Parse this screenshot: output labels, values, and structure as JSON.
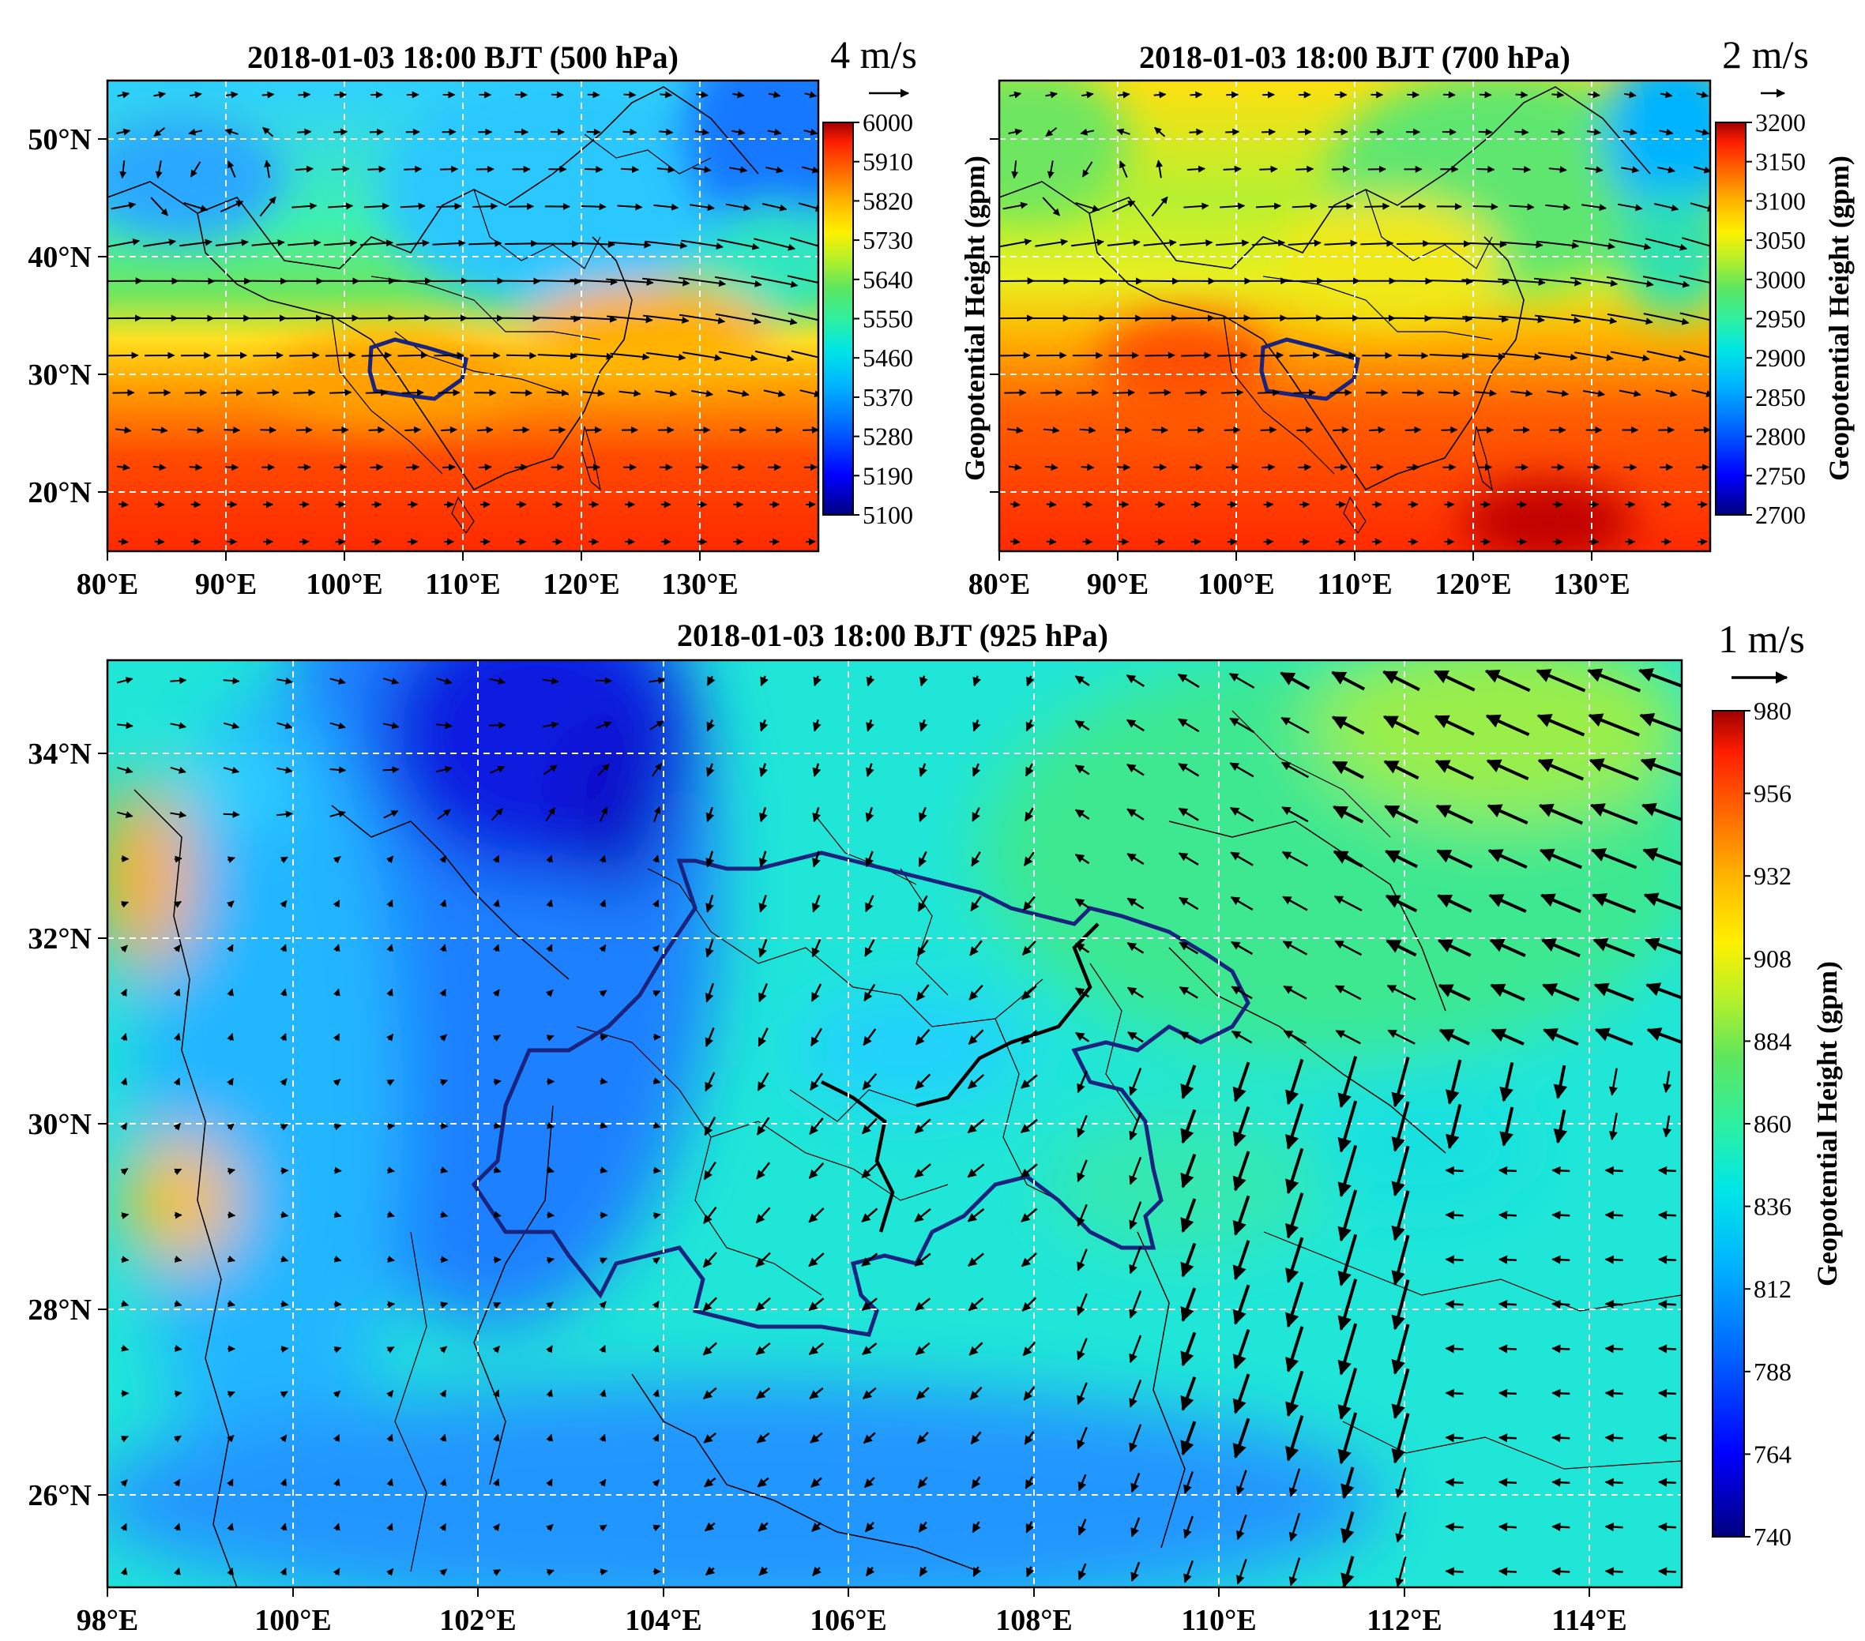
{
  "figure": {
    "panels": [
      {
        "id": "p500",
        "title": "2018-01-03 18:00 BJT (500 hPa)",
        "lon_range": [
          80,
          140
        ],
        "lat_range": [
          15,
          55
        ],
        "x_ticks": [
          "80°E",
          "90°E",
          "100°E",
          "110°E",
          "120°E",
          "130°E"
        ],
        "y_ticks": [
          "50°N",
          "40°N",
          "30°N",
          "20°N"
        ],
        "colorbar": {
          "label": "Geopotential Height (gpm)",
          "ticks": [
            "6000",
            "5910",
            "5820",
            "5730",
            "5640",
            "5550",
            "5460",
            "5370",
            "5280",
            "5190",
            "5100"
          ]
        },
        "wind_reference": {
          "label": "4 m/s"
        }
      },
      {
        "id": "p700",
        "title": "2018-01-03 18:00 BJT (700 hPa)",
        "lon_range": [
          80,
          140
        ],
        "lat_range": [
          15,
          55
        ],
        "x_ticks": [
          "80°E",
          "90°E",
          "100°E",
          "110°E",
          "120°E",
          "130°E"
        ],
        "colorbar": {
          "label": "Geopotential Height (gpm)",
          "ticks": [
            "3200",
            "3150",
            "3100",
            "3050",
            "3000",
            "2950",
            "2900",
            "2850",
            "2800",
            "2750",
            "2700"
          ]
        },
        "wind_reference": {
          "label": "2 m/s"
        }
      },
      {
        "id": "p925",
        "title": "2018-01-03 18:00 BJT (925 hPa)",
        "lon_range": [
          98,
          115
        ],
        "lat_range": [
          25,
          35
        ],
        "x_ticks": [
          "98°E",
          "100°E",
          "102°E",
          "104°E",
          "106°E",
          "108°E",
          "110°E",
          "112°E",
          "114°E"
        ],
        "y_ticks": [
          "34°N",
          "32°N",
          "30°N",
          "28°N",
          "26°N"
        ],
        "colorbar": {
          "label": "Geopotential Height (gpm)",
          "ticks": [
            "980",
            "956",
            "932",
            "908",
            "884",
            "860",
            "836",
            "812",
            "788",
            "764",
            "740"
          ]
        },
        "wind_reference": {
          "label": "1 m/s"
        }
      }
    ],
    "colormap": [
      "#00007f",
      "#0000ff",
      "#0064ff",
      "#00b4ff",
      "#00e6e6",
      "#2ef0a0",
      "#5ee65e",
      "#b4f02a",
      "#fff000",
      "#ffb400",
      "#ff6400",
      "#ff1e00",
      "#a00000"
    ]
  }
}
